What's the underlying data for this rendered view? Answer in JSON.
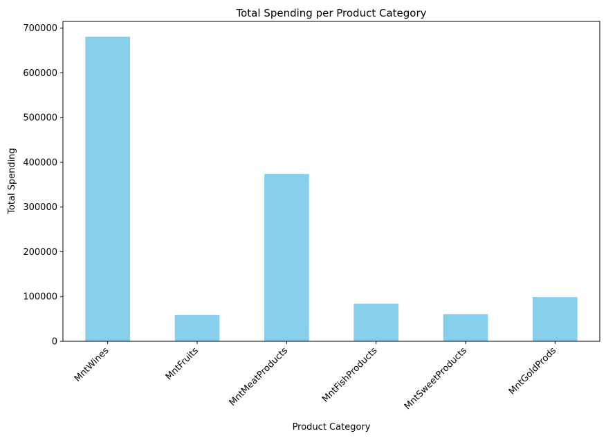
{
  "chart_data": {
    "type": "bar",
    "title": "Total Spending per Product Category",
    "xlabel": "Product Category",
    "ylabel": "Total Spending",
    "categories": [
      "MntWines",
      "MntFruits",
      "MntMeatProducts",
      "MntFishProducts",
      "MntSweetProducts",
      "MntGoldProds"
    ],
    "values": [
      680816,
      58917,
      373968,
      84057,
      60621,
      98609
    ],
    "ylim": [
      0,
      715000
    ],
    "yticks": [
      0,
      100000,
      200000,
      300000,
      400000,
      500000,
      600000,
      700000
    ],
    "bar_color": "#87ceeb",
    "grid": false,
    "legend": "none"
  }
}
